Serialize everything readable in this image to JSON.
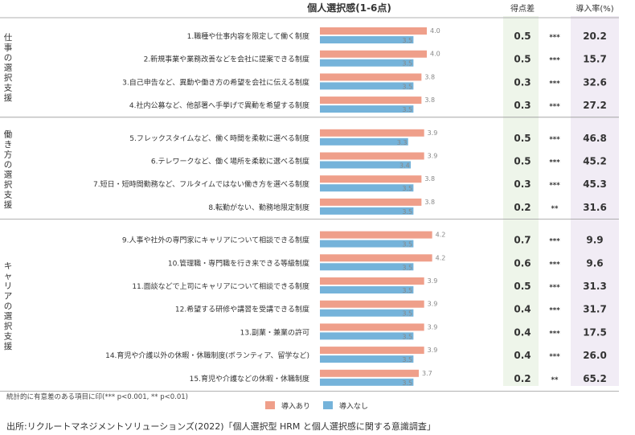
{
  "chart_data": {
    "type": "bar",
    "title": "個人選択感(1-6点)",
    "xlim": [
      0,
      6
    ],
    "diff_header": "得点差",
    "rate_header": "導入率(%)",
    "series": [
      {
        "name": "導入あり",
        "color": "#ef9f8a"
      },
      {
        "name": "導入なし",
        "color": "#75b3da"
      }
    ],
    "groups": [
      {
        "label": "仕事の選択支援",
        "items": [
          {
            "label": "1.職種や仕事内容を限定して働く制度",
            "with": 4.0,
            "without": 3.5,
            "diff": 0.5,
            "sig": "***",
            "rate": 20.2
          },
          {
            "label": "2.新規事業や業務改善などを会社に提案できる制度",
            "with": 4.0,
            "without": 3.5,
            "diff": 0.5,
            "sig": "***",
            "rate": 15.7
          },
          {
            "label": "3.自己申告など、異動や働き方の希望を会社に伝える制度",
            "with": 3.8,
            "without": 3.5,
            "diff": 0.3,
            "sig": "***",
            "rate": 32.6
          },
          {
            "label": "4.社内公募など、他部署へ手挙げで異動を希望する制度",
            "with": 3.8,
            "without": 3.5,
            "diff": 0.3,
            "sig": "***",
            "rate": 27.2
          }
        ]
      },
      {
        "label": "働き方の選択支援",
        "items": [
          {
            "label": "5.フレックスタイムなど、働く時間を柔軟に選べる制度",
            "with": 3.9,
            "without": 3.3,
            "diff": 0.5,
            "sig": "***",
            "rate": 46.8
          },
          {
            "label": "6.テレワークなど、働く場所を柔軟に選べる制度",
            "with": 3.9,
            "without": 3.4,
            "diff": 0.5,
            "sig": "***",
            "rate": 45.2
          },
          {
            "label": "7.短日・短時間勤務など、フルタイムではない働き方を選べる制度",
            "with": 3.8,
            "without": 3.5,
            "diff": 0.3,
            "sig": "***",
            "rate": 45.3
          },
          {
            "label": "8.転勤がない、勤務地限定制度",
            "with": 3.8,
            "without": 3.5,
            "diff": 0.2,
            "sig": "**",
            "rate": 31.6
          }
        ]
      },
      {
        "label": "キャリアの選択支援",
        "items": [
          {
            "label": "9.人事や社外の専門家にキャリアについて相談できる制度",
            "with": 4.2,
            "without": 3.5,
            "diff": 0.7,
            "sig": "***",
            "rate": 9.9
          },
          {
            "label": "10.管理職・専門職を行き来できる等級制度",
            "with": 4.2,
            "without": 3.5,
            "diff": 0.6,
            "sig": "***",
            "rate": 9.6
          },
          {
            "label": "11.面談などで上司にキャリアについて相談できる制度",
            "with": 3.9,
            "without": 3.5,
            "diff": 0.5,
            "sig": "***",
            "rate": 31.3
          },
          {
            "label": "12.希望する研修や講習を受講できる制度",
            "with": 3.9,
            "without": 3.5,
            "diff": 0.4,
            "sig": "***",
            "rate": 31.7
          },
          {
            "label": "13.副業・兼業の許可",
            "with": 3.9,
            "without": 3.5,
            "diff": 0.4,
            "sig": "***",
            "rate": 17.5
          },
          {
            "label": "14.育児や介護以外の休暇・休職制度(ボランティア、留学など)",
            "with": 3.9,
            "without": 3.5,
            "diff": 0.4,
            "sig": "***",
            "rate": 26.0
          },
          {
            "label": "15.育児や介護などの休暇・休職制度",
            "with": 3.7,
            "without": 3.5,
            "diff": 0.2,
            "sig": "**",
            "rate": 65.2
          }
        ]
      }
    ]
  },
  "notes": {
    "significance": "統計的に有意差のある項目に印(*** p<0.001, ** p<0.01)",
    "source": "出所:リクルートマネジメントソリューションズ(2022)「個人選択型 HRM と個人選択感に関する意識調査」"
  }
}
